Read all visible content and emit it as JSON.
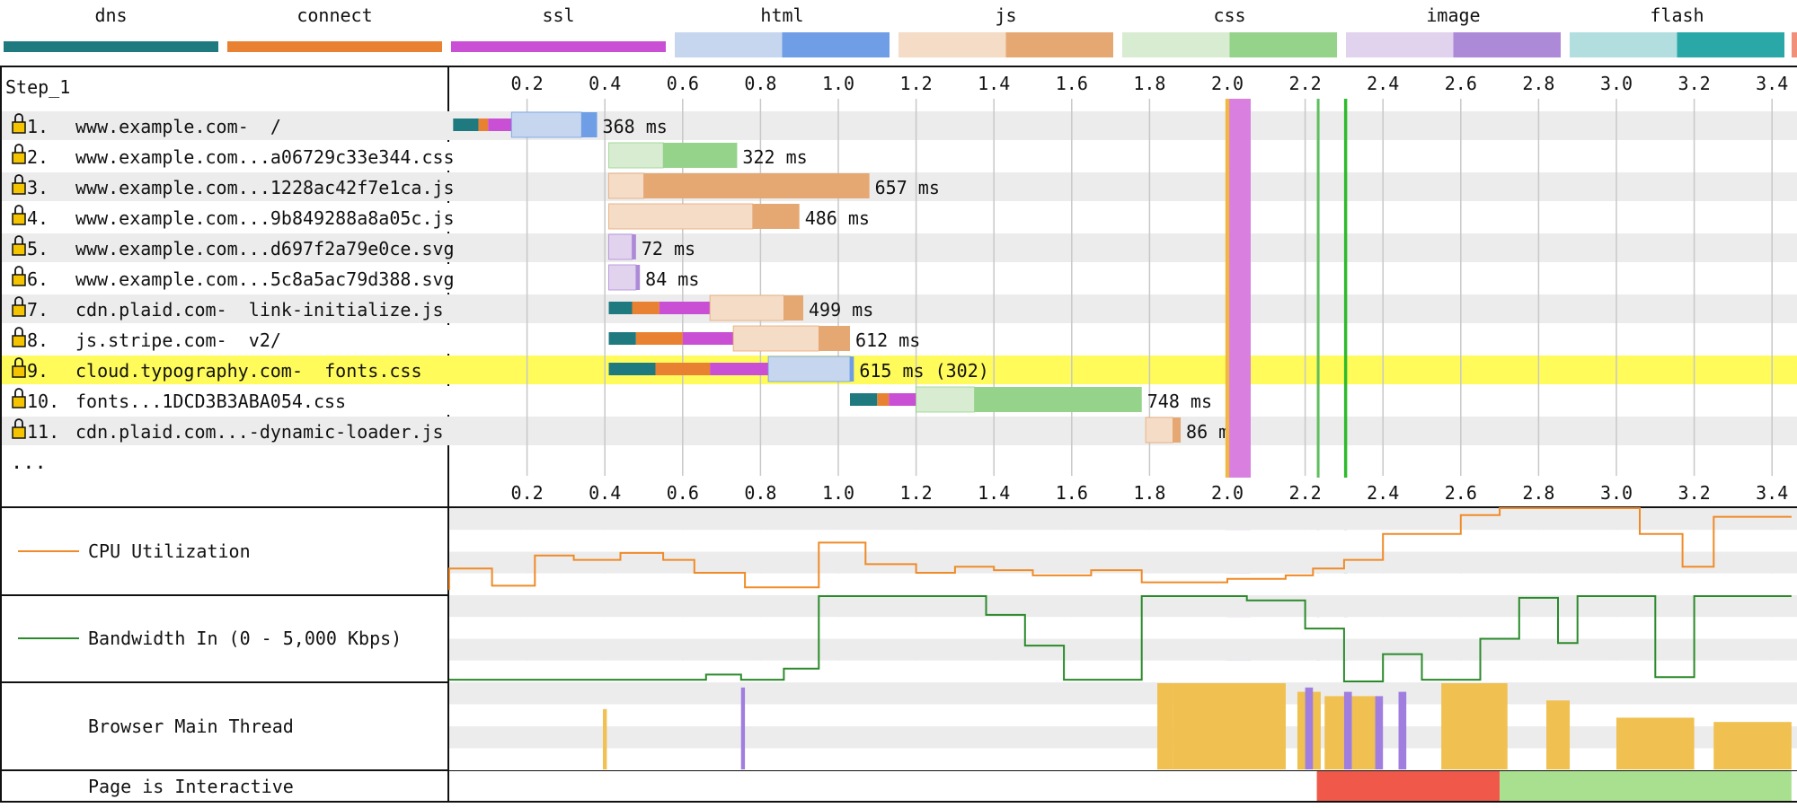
{
  "legend": [
    {
      "label": "dns",
      "color": "#1f7a80",
      "wait": null
    },
    {
      "label": "connect",
      "color": "#e98132",
      "wait": null
    },
    {
      "label": "ssl",
      "color": "#c94fd4",
      "wait": null
    },
    {
      "label": "html",
      "color": "#6f9ee6",
      "wait": "#c6d6ef"
    },
    {
      "label": "js",
      "color": "#e6a873",
      "wait": "#f4dcc6"
    },
    {
      "label": "css",
      "color": "#95d28a",
      "wait": "#d8ecd2"
    },
    {
      "label": "image",
      "color": "#ad8ad8",
      "wait": "#e1d3ee"
    },
    {
      "label": "flash",
      "color": "#2aa8a8",
      "wait": "#b2dedf"
    }
  ],
  "step_label": "Step_1",
  "ellipsis": "...",
  "chart_data": {
    "type": "waterfall",
    "x_ticks": [
      "0.2",
      "0.4",
      "0.6",
      "0.8",
      "1.0",
      "1.2",
      "1.4",
      "1.6",
      "1.8",
      "2.0",
      "2.2",
      "2.4",
      "2.6",
      "2.8",
      "3.0",
      "3.2",
      "3.4"
    ],
    "xlim": [
      0,
      3.45
    ],
    "requests": [
      {
        "num": "1.",
        "host": "www.example.com",
        "sep": " - ",
        "path": "/",
        "time_label": "368 ms",
        "highlight": false,
        "type": "html",
        "dns": [
          0.01,
          0.075
        ],
        "connect": [
          0.075,
          0.1
        ],
        "ssl": [
          0.1,
          0.16
        ],
        "wait": [
          0.16,
          0.34
        ],
        "receive": [
          0.34,
          0.38
        ]
      },
      {
        "num": "2.",
        "host": "www.example.com",
        "sep": "...",
        "path": "a06729c33e344.css",
        "time_label": "322 ms",
        "highlight": false,
        "type": "css",
        "dns": null,
        "connect": null,
        "ssl": null,
        "wait": [
          0.41,
          0.55
        ],
        "receive": [
          0.55,
          0.74
        ]
      },
      {
        "num": "3.",
        "host": "www.example.com",
        "sep": "...",
        "path": "1228ac42f7e1ca.js",
        "time_label": "657 ms",
        "highlight": false,
        "type": "js",
        "dns": null,
        "connect": null,
        "ssl": null,
        "wait": [
          0.41,
          0.5
        ],
        "receive": [
          0.5,
          1.08
        ]
      },
      {
        "num": "4.",
        "host": "www.example.com",
        "sep": "...",
        "path": "9b849288a8a05c.js",
        "time_label": "486 ms",
        "highlight": false,
        "type": "js",
        "dns": null,
        "connect": null,
        "ssl": null,
        "wait": [
          0.41,
          0.78
        ],
        "receive": [
          0.78,
          0.9
        ]
      },
      {
        "num": "5.",
        "host": "www.example.com",
        "sep": "...",
        "path": "d697f2a79e0ce.svg",
        "time_label": "72 ms",
        "highlight": false,
        "type": "image",
        "dns": null,
        "connect": null,
        "ssl": null,
        "wait": [
          0.41,
          0.47
        ],
        "receive": [
          0.47,
          0.48
        ]
      },
      {
        "num": "6.",
        "host": "www.example.com",
        "sep": "...",
        "path": "5c8a5ac79d388.svg",
        "time_label": "84 ms",
        "highlight": false,
        "type": "image",
        "dns": null,
        "connect": null,
        "ssl": null,
        "wait": [
          0.41,
          0.48
        ],
        "receive": [
          0.48,
          0.49
        ]
      },
      {
        "num": "7.",
        "host": "cdn.plaid.com",
        "sep": " - ",
        "path": "link-initialize.js",
        "time_label": "499 ms",
        "highlight": false,
        "type": "js",
        "dns": [
          0.41,
          0.47
        ],
        "connect": [
          0.47,
          0.54
        ],
        "ssl": [
          0.54,
          0.67
        ],
        "wait": [
          0.67,
          0.86
        ],
        "receive": [
          0.86,
          0.91
        ]
      },
      {
        "num": "8.",
        "host": "js.stripe.com",
        "sep": " - ",
        "path": "v2/",
        "time_label": "612 ms",
        "highlight": false,
        "type": "js",
        "dns": [
          0.41,
          0.48
        ],
        "connect": [
          0.48,
          0.6
        ],
        "ssl": [
          0.6,
          0.73
        ],
        "wait": [
          0.73,
          0.95
        ],
        "receive": [
          0.95,
          1.03
        ]
      },
      {
        "num": "9.",
        "host": "cloud.typography.com",
        "sep": " - ",
        "path": "fonts.css",
        "time_label": "615 ms (302)",
        "highlight": true,
        "type": "html",
        "dns": [
          0.41,
          0.53
        ],
        "connect": [
          0.53,
          0.67
        ],
        "ssl": [
          0.67,
          0.82
        ],
        "wait": [
          0.82,
          1.03
        ],
        "receive": [
          1.03,
          1.04
        ]
      },
      {
        "num": "10.",
        "host": "fonts",
        "sep": "...",
        "path": "1DCD3B3ABA054.css",
        "time_label": "748 ms",
        "highlight": false,
        "type": "css",
        "dns": [
          1.03,
          1.1
        ],
        "connect": [
          1.1,
          1.13
        ],
        "ssl": [
          1.13,
          1.2
        ],
        "wait": [
          1.2,
          1.35
        ],
        "receive": [
          1.35,
          1.78
        ]
      },
      {
        "num": "11.",
        "host": "cdn.plaid.com",
        "sep": "...",
        "path": "-dynamic-loader.js",
        "time_label": "86 ms",
        "highlight": false,
        "type": "js",
        "dns": null,
        "connect": null,
        "ssl": null,
        "wait": [
          1.79,
          1.86
        ],
        "receive": [
          1.86,
          1.88
        ]
      }
    ],
    "vertical_markers": [
      {
        "time": 2.0,
        "width": 0.06,
        "color": "#d87fe0",
        "solid": true
      },
      {
        "time": 1.995,
        "width": 0.01,
        "color": "#f0b840",
        "solid": true
      },
      {
        "time": 2.23,
        "width": 0.006,
        "color": "#5fbf5f",
        "solid": true
      },
      {
        "time": 2.3,
        "width": 0.008,
        "color": "#2dbb2d",
        "solid": true
      }
    ],
    "cpu": {
      "label": "CPU Utilization",
      "color": "#f08a28",
      "points": [
        [
          0,
          95
        ],
        [
          0,
          70
        ],
        [
          0.11,
          70
        ],
        [
          0.11,
          90
        ],
        [
          0.22,
          90
        ],
        [
          0.22,
          55
        ],
        [
          0.32,
          55
        ],
        [
          0.32,
          60
        ],
        [
          0.44,
          60
        ],
        [
          0.44,
          52
        ],
        [
          0.55,
          52
        ],
        [
          0.55,
          60
        ],
        [
          0.63,
          60
        ],
        [
          0.63,
          75
        ],
        [
          0.76,
          75
        ],
        [
          0.76,
          92
        ],
        [
          0.95,
          92
        ],
        [
          0.95,
          40
        ],
        [
          1.07,
          40
        ],
        [
          1.07,
          65
        ],
        [
          1.2,
          65
        ],
        [
          1.2,
          75
        ],
        [
          1.3,
          75
        ],
        [
          1.3,
          68
        ],
        [
          1.4,
          68
        ],
        [
          1.4,
          72
        ],
        [
          1.5,
          72
        ],
        [
          1.5,
          78
        ],
        [
          1.65,
          78
        ],
        [
          1.65,
          72
        ],
        [
          1.78,
          72
        ],
        [
          1.78,
          86
        ],
        [
          2.0,
          86
        ],
        [
          2.0,
          82
        ],
        [
          2.15,
          82
        ],
        [
          2.15,
          78
        ],
        [
          2.22,
          78
        ],
        [
          2.22,
          70
        ],
        [
          2.3,
          70
        ],
        [
          2.3,
          60
        ],
        [
          2.4,
          60
        ],
        [
          2.4,
          30
        ],
        [
          2.6,
          30
        ],
        [
          2.6,
          8
        ],
        [
          2.7,
          8
        ],
        [
          2.7,
          0
        ],
        [
          3.06,
          0
        ],
        [
          3.06,
          30
        ],
        [
          3.17,
          30
        ],
        [
          3.17,
          68
        ],
        [
          3.25,
          68
        ],
        [
          3.25,
          10
        ],
        [
          3.45,
          10
        ]
      ]
    },
    "bandwidth": {
      "label": "Bandwidth In (0 - 5,000 Kbps)",
      "color": "#2a8a2a",
      "points": [
        [
          0,
          98
        ],
        [
          0.66,
          98
        ],
        [
          0.66,
          92
        ],
        [
          0.75,
          92
        ],
        [
          0.75,
          98
        ],
        [
          0.86,
          98
        ],
        [
          0.86,
          85
        ],
        [
          0.95,
          85
        ],
        [
          0.95,
          0
        ],
        [
          1.38,
          0
        ],
        [
          1.38,
          22
        ],
        [
          1.48,
          22
        ],
        [
          1.48,
          58
        ],
        [
          1.58,
          58
        ],
        [
          1.58,
          98
        ],
        [
          1.78,
          98
        ],
        [
          1.78,
          0
        ],
        [
          2.05,
          0
        ],
        [
          2.05,
          5
        ],
        [
          2.2,
          5
        ],
        [
          2.2,
          38
        ],
        [
          2.3,
          38
        ],
        [
          2.3,
          100
        ],
        [
          2.4,
          100
        ],
        [
          2.4,
          68
        ],
        [
          2.5,
          68
        ],
        [
          2.5,
          98
        ],
        [
          2.65,
          98
        ],
        [
          2.65,
          50
        ],
        [
          2.75,
          50
        ],
        [
          2.75,
          2
        ],
        [
          2.85,
          2
        ],
        [
          2.85,
          55
        ],
        [
          2.9,
          55
        ],
        [
          2.9,
          0
        ],
        [
          3.1,
          0
        ],
        [
          3.1,
          95
        ],
        [
          3.2,
          95
        ],
        [
          3.2,
          0
        ],
        [
          3.45,
          0
        ]
      ]
    },
    "main_thread": {
      "label": "Browser Main Thread",
      "blocks": [
        [
          1.82,
          1.86,
          "#f0c050",
          100
        ],
        [
          1.86,
          2.15,
          "#f0c050",
          100
        ],
        [
          2.18,
          2.24,
          "#f0c050",
          90
        ],
        [
          2.25,
          2.3,
          "#f0c050",
          85
        ],
        [
          2.32,
          2.38,
          "#f0c050",
          85
        ],
        [
          2.55,
          2.72,
          "#f0c050",
          100
        ],
        [
          2.82,
          2.88,
          "#f0c050",
          80
        ],
        [
          3.0,
          3.2,
          "#f0c050",
          60
        ],
        [
          3.25,
          3.45,
          "#f0c050",
          55
        ],
        [
          0.395,
          0.405,
          "#f0c050",
          70
        ],
        [
          0.75,
          0.76,
          "#a07ee0",
          95
        ],
        [
          2.2,
          2.22,
          "#a07ee0",
          95
        ],
        [
          2.3,
          2.32,
          "#a07ee0",
          90
        ],
        [
          2.38,
          2.4,
          "#a07ee0",
          85
        ],
        [
          2.44,
          2.46,
          "#a07ee0",
          90
        ]
      ]
    },
    "interactive": {
      "label": "Page is Interactive",
      "segments": [
        [
          0,
          2.23,
          "#ffffff"
        ],
        [
          2.23,
          2.7,
          "#f0584a"
        ],
        [
          2.7,
          3.45,
          "#a8e090"
        ]
      ]
    }
  }
}
